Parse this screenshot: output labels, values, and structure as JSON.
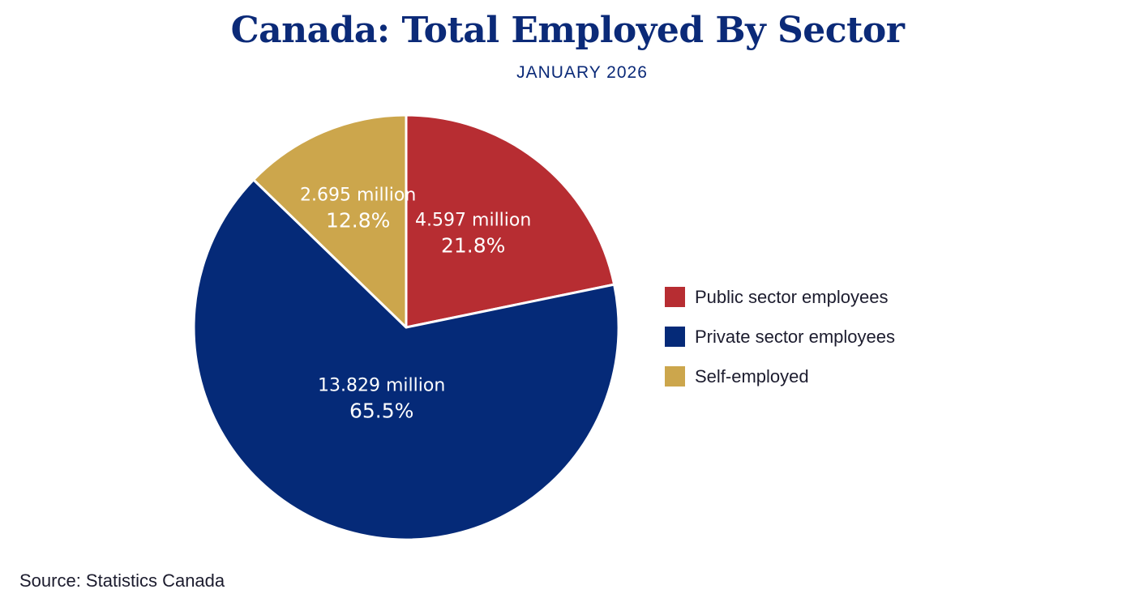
{
  "title": "Canada: Total Employed By Sector",
  "subtitle": "JANUARY 2026",
  "source": "Source: Statistics Canada",
  "chart_data": {
    "type": "pie",
    "title": "Canada: Total Employed By Sector",
    "subtitle": "JANUARY 2026",
    "legend_position": "right",
    "slices": [
      {
        "name": "Public sector employees",
        "value": 4.597,
        "value_label": "4.597 million",
        "percent_label": "21.8%",
        "color": "#b72d32"
      },
      {
        "name": "Private sector employees",
        "value": 13.829,
        "value_label": "13.829 million",
        "percent_label": "65.5%",
        "color": "#052a78"
      },
      {
        "name": "Self-employed",
        "value": 2.695,
        "value_label": "2.695 million",
        "percent_label": "12.8%",
        "color": "#cca64c"
      }
    ]
  }
}
